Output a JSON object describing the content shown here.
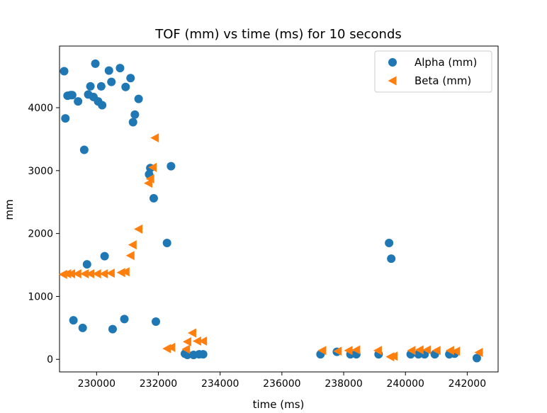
{
  "chart_data": {
    "type": "scatter",
    "title": "TOF (mm) vs time (ms) for 10 seconds",
    "xlabel": "time (ms)",
    "ylabel": "mm",
    "xlim": [
      228800,
      243000
    ],
    "ylim": [
      -200,
      4980
    ],
    "xticks": [
      230000,
      232000,
      234000,
      236000,
      238000,
      240000,
      242000
    ],
    "yticks": [
      0,
      1000,
      2000,
      3000,
      4000
    ],
    "legend_position": "top-right",
    "series": [
      {
        "name": "Alpha (mm)",
        "marker": "circle",
        "color": "#1f77b4",
        "points": [
          [
            228950,
            4580
          ],
          [
            228990,
            3830
          ],
          [
            229060,
            4190
          ],
          [
            229160,
            4200
          ],
          [
            229210,
            4200
          ],
          [
            229250,
            620
          ],
          [
            229400,
            4100
          ],
          [
            229550,
            500
          ],
          [
            229600,
            3330
          ],
          [
            229690,
            1510
          ],
          [
            229730,
            4210
          ],
          [
            229800,
            4340
          ],
          [
            229900,
            4170
          ],
          [
            229960,
            4700
          ],
          [
            230050,
            4100
          ],
          [
            230150,
            4340
          ],
          [
            230180,
            4040
          ],
          [
            230260,
            1640
          ],
          [
            230400,
            4590
          ],
          [
            230480,
            4410
          ],
          [
            230520,
            480
          ],
          [
            230760,
            4630
          ],
          [
            230900,
            640
          ],
          [
            230940,
            4330
          ],
          [
            231100,
            4470
          ],
          [
            231180,
            3770
          ],
          [
            231240,
            3890
          ],
          [
            231360,
            4140
          ],
          [
            231700,
            2940
          ],
          [
            231740,
            3040
          ],
          [
            231850,
            2560
          ],
          [
            231920,
            600
          ],
          [
            232280,
            1850
          ],
          [
            232410,
            3070
          ],
          [
            232860,
            90
          ],
          [
            232940,
            70
          ],
          [
            233140,
            70
          ],
          [
            233320,
            80
          ],
          [
            233450,
            80
          ],
          [
            237250,
            80
          ],
          [
            237780,
            120
          ],
          [
            238220,
            80
          ],
          [
            238410,
            80
          ],
          [
            239130,
            80
          ],
          [
            239470,
            1850
          ],
          [
            239540,
            1600
          ],
          [
            240170,
            80
          ],
          [
            240420,
            80
          ],
          [
            240620,
            80
          ],
          [
            240950,
            80
          ],
          [
            241420,
            80
          ],
          [
            241590,
            90
          ],
          [
            242310,
            20
          ]
        ]
      },
      {
        "name": "Beta (mm)",
        "marker": "triangle-left",
        "color": "#ff7f0e",
        "points": [
          [
            228920,
            1350
          ],
          [
            229050,
            1360
          ],
          [
            229180,
            1360
          ],
          [
            229380,
            1360
          ],
          [
            229620,
            1360
          ],
          [
            229800,
            1360
          ],
          [
            230020,
            1360
          ],
          [
            230240,
            1360
          ],
          [
            230460,
            1370
          ],
          [
            230800,
            1380
          ],
          [
            230940,
            1390
          ],
          [
            231100,
            1650
          ],
          [
            231170,
            1820
          ],
          [
            231360,
            2070
          ],
          [
            231680,
            2800
          ],
          [
            231740,
            2870
          ],
          [
            231820,
            3050
          ],
          [
            231890,
            3520
          ],
          [
            232280,
            170
          ],
          [
            232420,
            190
          ],
          [
            232900,
            160
          ],
          [
            232940,
            280
          ],
          [
            233100,
            420
          ],
          [
            233260,
            290
          ],
          [
            233450,
            290
          ],
          [
            237310,
            140
          ],
          [
            237810,
            130
          ],
          [
            238160,
            140
          ],
          [
            238410,
            150
          ],
          [
            239110,
            140
          ],
          [
            239510,
            40
          ],
          [
            239620,
            50
          ],
          [
            240200,
            140
          ],
          [
            240460,
            150
          ],
          [
            240700,
            150
          ],
          [
            241010,
            140
          ],
          [
            241450,
            140
          ],
          [
            241640,
            130
          ],
          [
            242380,
            110
          ]
        ]
      }
    ]
  }
}
